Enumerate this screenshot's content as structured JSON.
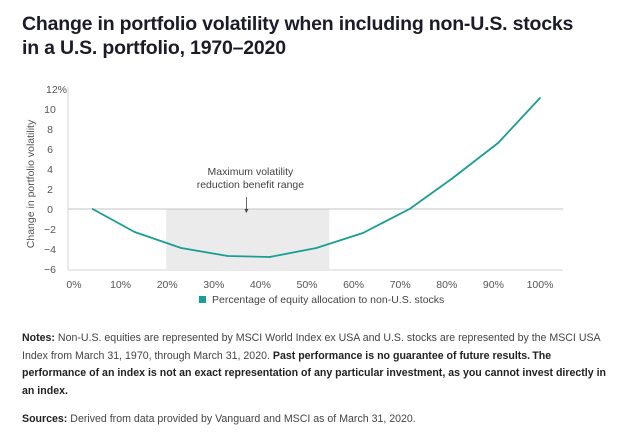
{
  "title": "Change in portfolio volatility when including non-U.S. stocks in a U.S. portfolio, 1970–2020",
  "chart_data": {
    "type": "line",
    "title": "Change in portfolio volatility when including non-U.S. stocks in a U.S. portfolio, 1970–2020",
    "xlabel": "",
    "ylabel": "Change in portfolio volatility",
    "xlim": [
      0,
      100
    ],
    "ylim": [
      -6,
      12
    ],
    "x_ticks": [
      0,
      10,
      20,
      30,
      40,
      50,
      60,
      70,
      80,
      90,
      100
    ],
    "x_tick_labels": [
      "0%",
      "10%",
      "20%",
      "30%",
      "40%",
      "50%",
      "60%",
      "70%",
      "80%",
      "90%",
      "100%"
    ],
    "y_ticks": [
      -6,
      -4,
      -2,
      0,
      2,
      4,
      6,
      8,
      10,
      12
    ],
    "y_tick_labels": [
      "−6",
      "−4",
      "−2",
      "0",
      "2",
      "4",
      "6",
      "8",
      "10",
      "12%"
    ],
    "grid": false,
    "legend": {
      "placement": "bottom-center",
      "entries": [
        "Percentage of equity allocation to non-U.S. stocks"
      ]
    },
    "series": [
      {
        "name": "Percentage of equity allocation to non-U.S. stocks",
        "color": "#1a9e94",
        "x": [
          4,
          13,
          23,
          33,
          42,
          52,
          62,
          72,
          81,
          91,
          100
        ],
        "values": [
          0.0,
          -2.3,
          -3.9,
          -4.7,
          -4.8,
          -3.9,
          -2.4,
          0.0,
          3.0,
          6.6,
          11.1
        ]
      }
    ],
    "shaded_range": {
      "x_start": 20,
      "x_end": 55,
      "color": "#ebebeb"
    },
    "annotation": {
      "text_lines": [
        "Maximum volatility",
        "reduction benefit range"
      ],
      "x": 37
    }
  },
  "notes": {
    "label": "Notes:",
    "text_regular": " Non-U.S. equities are represented by MSCI World Index ex USA and U.S. stocks are represented by the MSCI USA Index from March 31, 1970, through March 31, 2020. ",
    "text_bold": "Past performance is no guarantee of future results. The performance of an index is not an exact representation of any particular investment, as you cannot invest directly in an index."
  },
  "sources": {
    "label": "Sources:",
    "text": " Derived from data provided by Vanguard and MSCI as of March 31, 2020."
  }
}
